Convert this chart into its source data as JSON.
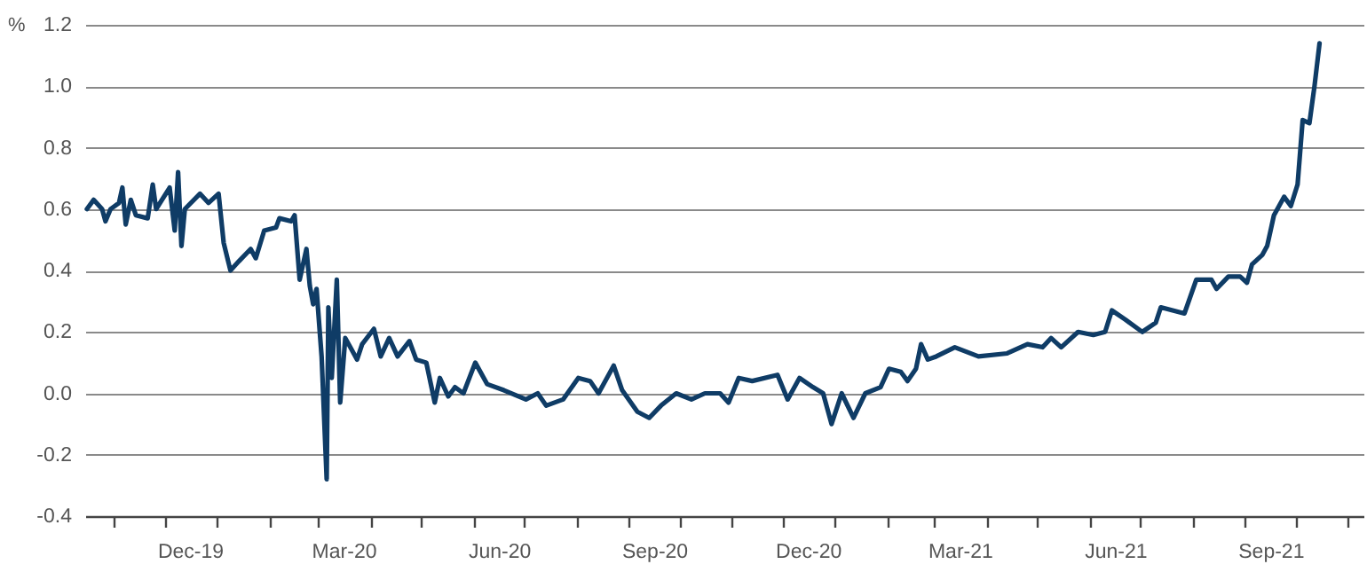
{
  "chart_data": {
    "type": "line",
    "ylabel": "%",
    "x": [
      "2019-10-16",
      "2019-10-20",
      "2019-10-25",
      "2019-10-27",
      "2019-10-30",
      "2019-11-04",
      "2019-11-06",
      "2019-11-08",
      "2019-11-11",
      "2019-11-14",
      "2019-11-21",
      "2019-11-24",
      "2019-11-26",
      "2019-12-04",
      "2019-12-07",
      "2019-12-09",
      "2019-12-11",
      "2019-12-13",
      "2019-12-22",
      "2019-12-27",
      "2020-01-02",
      "2020-01-05",
      "2020-01-09",
      "2020-01-14",
      "2020-01-21",
      "2020-01-24",
      "2020-01-29",
      "2020-02-05",
      "2020-02-07",
      "2020-02-14",
      "2020-02-16",
      "2020-02-19",
      "2020-02-23",
      "2020-02-25",
      "2020-02-27",
      "2020-02-29",
      "2020-03-03",
      "2020-03-06",
      "2020-03-07",
      "2020-03-09",
      "2020-03-12",
      "2020-03-14",
      "2020-03-17",
      "2020-03-20",
      "2020-03-24",
      "2020-03-27",
      "2020-04-03",
      "2020-04-07",
      "2020-04-12",
      "2020-04-17",
      "2020-04-24",
      "2020-04-28",
      "2020-05-04",
      "2020-05-09",
      "2020-05-12",
      "2020-05-17",
      "2020-05-21",
      "2020-05-26",
      "2020-06-02",
      "2020-06-09",
      "2020-06-19",
      "2020-07-02",
      "2020-07-09",
      "2020-07-14",
      "2020-07-24",
      "2020-08-02",
      "2020-08-09",
      "2020-08-14",
      "2020-08-23",
      "2020-08-28",
      "2020-09-06",
      "2020-09-13",
      "2020-09-20",
      "2020-09-29",
      "2020-10-08",
      "2020-10-16",
      "2020-10-25",
      "2020-10-30",
      "2020-11-05",
      "2020-11-13",
      "2020-11-28",
      "2020-12-04",
      "2020-12-11",
      "2020-12-19",
      "2020-12-25",
      "2020-12-30",
      "2021-01-05",
      "2021-01-12",
      "2021-01-19",
      "2021-01-28",
      "2021-02-02",
      "2021-02-09",
      "2021-02-13",
      "2021-02-18",
      "2021-02-21",
      "2021-02-25",
      "2021-03-02",
      "2021-03-13",
      "2021-03-27",
      "2021-04-13",
      "2021-04-25",
      "2021-05-04",
      "2021-05-09",
      "2021-05-15",
      "2021-05-25",
      "2021-06-03",
      "2021-06-10",
      "2021-06-14",
      "2021-06-22",
      "2021-07-02",
      "2021-07-10",
      "2021-07-13",
      "2021-07-20",
      "2021-07-27",
      "2021-08-03",
      "2021-08-12",
      "2021-08-15",
      "2021-08-22",
      "2021-08-29",
      "2021-09-02",
      "2021-09-05",
      "2021-09-11",
      "2021-09-14",
      "2021-09-18",
      "2021-09-24",
      "2021-09-28",
      "2021-10-02",
      "2021-10-05",
      "2021-10-09",
      "2021-10-12",
      "2021-10-15"
    ],
    "series": [
      {
        "color": "#0f3c66",
        "values": [
          0.6,
          0.63,
          0.6,
          0.56,
          0.6,
          0.62,
          0.67,
          0.55,
          0.63,
          0.58,
          0.57,
          0.68,
          0.6,
          0.67,
          0.53,
          0.72,
          0.48,
          0.6,
          0.65,
          0.62,
          0.65,
          0.49,
          0.4,
          0.43,
          0.47,
          0.44,
          0.53,
          0.54,
          0.57,
          0.56,
          0.58,
          0.37,
          0.47,
          0.35,
          0.29,
          0.34,
          0.12,
          -0.28,
          0.28,
          0.05,
          0.37,
          -0.03,
          0.18,
          0.15,
          0.11,
          0.16,
          0.21,
          0.12,
          0.18,
          0.12,
          0.17,
          0.11,
          0.1,
          -0.03,
          0.05,
          -0.01,
          0.02,
          0.0,
          0.1,
          0.03,
          0.01,
          -0.02,
          0.0,
          -0.04,
          -0.02,
          0.05,
          0.04,
          0.0,
          0.09,
          0.01,
          -0.06,
          -0.08,
          -0.04,
          0.0,
          -0.02,
          0.0,
          0.0,
          -0.03,
          0.05,
          0.04,
          0.06,
          -0.02,
          0.05,
          0.02,
          0.0,
          -0.1,
          0.0,
          -0.08,
          0.0,
          0.02,
          0.08,
          0.07,
          0.04,
          0.08,
          0.16,
          0.11,
          0.12,
          0.15,
          0.12,
          0.13,
          0.16,
          0.15,
          0.18,
          0.15,
          0.2,
          0.19,
          0.2,
          0.27,
          0.24,
          0.2,
          0.23,
          0.28,
          0.27,
          0.26,
          0.37,
          0.37,
          0.34,
          0.38,
          0.38,
          0.36,
          0.42,
          0.45,
          0.48,
          0.58,
          0.64,
          0.61,
          0.68,
          0.89,
          0.88,
          1.0,
          1.14
        ]
      }
    ],
    "xlim": [
      "2019-10-15",
      "2021-11-10"
    ],
    "xticks": [
      {
        "value": "2019-11-01",
        "label": null
      },
      {
        "value": "2019-12-01",
        "label": null
      },
      {
        "value": "2019-12-16",
        "label": "Dec-19"
      },
      {
        "value": "2020-01-01",
        "label": null
      },
      {
        "value": "2020-02-01",
        "label": null
      },
      {
        "value": "2020-03-01",
        "label": null
      },
      {
        "value": "2020-03-16",
        "label": "Mar-20"
      },
      {
        "value": "2020-04-01",
        "label": null
      },
      {
        "value": "2020-05-01",
        "label": null
      },
      {
        "value": "2020-06-01",
        "label": null
      },
      {
        "value": "2020-06-16",
        "label": "Jun-20"
      },
      {
        "value": "2020-07-01",
        "label": null
      },
      {
        "value": "2020-08-01",
        "label": null
      },
      {
        "value": "2020-09-01",
        "label": null
      },
      {
        "value": "2020-09-16",
        "label": "Sep-20"
      },
      {
        "value": "2020-10-01",
        "label": null
      },
      {
        "value": "2020-11-01",
        "label": null
      },
      {
        "value": "2020-12-01",
        "label": null
      },
      {
        "value": "2020-12-16",
        "label": "Dec-20"
      },
      {
        "value": "2021-01-01",
        "label": null
      },
      {
        "value": "2021-02-01",
        "label": null
      },
      {
        "value": "2021-03-01",
        "label": null
      },
      {
        "value": "2021-03-16",
        "label": "Mar-21"
      },
      {
        "value": "2021-04-01",
        "label": null
      },
      {
        "value": "2021-05-01",
        "label": null
      },
      {
        "value": "2021-06-01",
        "label": null
      },
      {
        "value": "2021-06-16",
        "label": "Jun-21"
      },
      {
        "value": "2021-07-01",
        "label": null
      },
      {
        "value": "2021-08-01",
        "label": null
      },
      {
        "value": "2021-09-01",
        "label": null
      },
      {
        "value": "2021-09-16",
        "label": "Sep-21"
      },
      {
        "value": "2021-10-01",
        "label": null
      },
      {
        "value": "2021-11-01",
        "label": null
      }
    ],
    "ylim": [
      -0.4,
      1.2
    ],
    "yticks": [
      {
        "value": -0.4,
        "label": "-0.4"
      },
      {
        "value": -0.2,
        "label": "-0.2"
      },
      {
        "value": 0,
        "label": "0.0"
      },
      {
        "value": 0.2,
        "label": "0.2"
      },
      {
        "value": 0.4,
        "label": "0.4"
      },
      {
        "value": 0.6,
        "label": "0.6"
      },
      {
        "value": 0.8,
        "label": "0.8"
      },
      {
        "value": 1.0,
        "label": "1.0"
      },
      {
        "value": 1.2,
        "label": "1.2"
      }
    ],
    "grid": "y",
    "line_style": "solid"
  }
}
